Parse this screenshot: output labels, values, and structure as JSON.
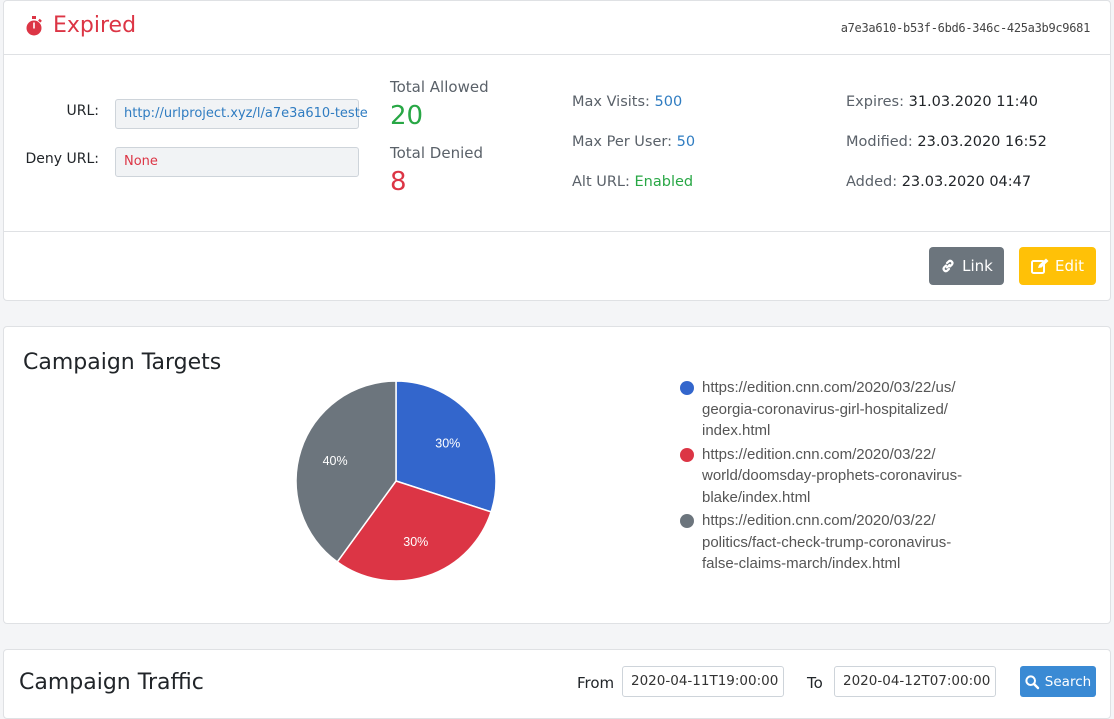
{
  "header": {
    "status": "Expired",
    "id": "a7e3a610-b53f-6bd6-346c-425a3b9c9681"
  },
  "details": {
    "url_label": "URL:",
    "url_value": "http://urlproject.xyz/l/a7e3a610-teste",
    "deny_label": "Deny URL:",
    "deny_value": "None",
    "total_allowed_label": "Total Allowed",
    "total_allowed_value": "20",
    "total_denied_label": "Total Denied",
    "total_denied_value": "8",
    "max_visits_label": "Max Visits:",
    "max_visits_value": "500",
    "max_per_user_label": "Max Per User:",
    "max_per_user_value": "50",
    "alt_url_label": "Alt URL:",
    "alt_url_value": "Enabled",
    "expires_label": "Expires:",
    "expires_value": "31.03.2020 11:40",
    "modified_label": "Modified:",
    "modified_value": "23.03.2020 16:52",
    "added_label": "Added:",
    "added_value": "23.03.2020 04:47"
  },
  "actions": {
    "link_label": "Link",
    "edit_label": "Edit"
  },
  "targets": {
    "title": "Campaign Targets"
  },
  "chart_data": {
    "type": "pie",
    "categories": [
      "https://edition.cnn.com/2020/03/22/us/georgia-coronavirus-girl-hospitalized/index.html",
      "https://edition.cnn.com/2020/03/22/world/doomsday-prophets-coronavirus-blake/index.html",
      "https://edition.cnn.com/2020/03/22/politics/fact-check-trump-coronavirus-false-claims-march/index.html"
    ],
    "legend_lines": [
      [
        "https://edition.cnn.com/2020/03/22/us/",
        "georgia-coronavirus-girl-hospitalized/",
        "index.html"
      ],
      [
        "https://edition.cnn.com/2020/03/22/",
        "world/doomsday-prophets-coronavirus-",
        "blake/index.html"
      ],
      [
        "https://edition.cnn.com/2020/03/22/",
        "politics/fact-check-trump-coronavirus-",
        "false-claims-march/index.html"
      ]
    ],
    "values": [
      30,
      30,
      40
    ],
    "labels": [
      "30%",
      "30%",
      "40%"
    ],
    "colors": [
      "#3366cc",
      "#dc3545",
      "#6c757d"
    ],
    "legend": "right"
  },
  "traffic": {
    "title": "Campaign Traffic",
    "from_label": "From",
    "from_value": "2020-04-11T19:00:00",
    "to_label": "To",
    "to_value": "2020-04-12T07:00:00",
    "search_label": "Search"
  }
}
